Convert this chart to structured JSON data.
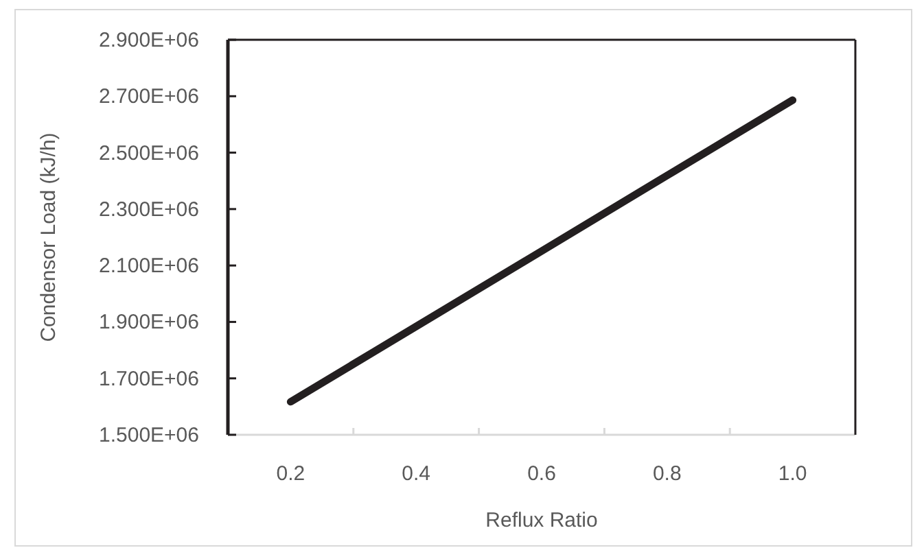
{
  "chart_data": {
    "type": "line",
    "xlabel": "Reflux Ratio",
    "ylabel": "Condensor Load (kJ/h)",
    "x": [
      0.2,
      0.4,
      0.6,
      0.8,
      1.0
    ],
    "series": [
      {
        "color": "#231f20",
        "values": [
          1617000,
          1884000,
          2151000,
          2419000,
          2686000
        ]
      }
    ],
    "xlim": [
      0.1,
      1.1
    ],
    "xticks": [
      {
        "value": 0.2,
        "label": "0.2"
      },
      {
        "value": 0.3,
        "label": null
      },
      {
        "value": 0.4,
        "label": "0.4"
      },
      {
        "value": 0.5,
        "label": null
      },
      {
        "value": 0.6,
        "label": "0.6"
      },
      {
        "value": 0.7,
        "label": null
      },
      {
        "value": 0.8,
        "label": "0.8"
      },
      {
        "value": 0.9,
        "label": null
      },
      {
        "value": 1.0,
        "label": "1.0"
      }
    ],
    "ylim": [
      1500000,
      2900000
    ],
    "yticks": [
      {
        "value": 1500000,
        "label": "1.500E+06"
      },
      {
        "value": 1700000,
        "label": "1.700E+06"
      },
      {
        "value": 1900000,
        "label": "1.900E+06"
      },
      {
        "value": 2100000,
        "label": "2.100E+06"
      },
      {
        "value": 2300000,
        "label": "2.300E+06"
      },
      {
        "value": 2500000,
        "label": "2.500E+06"
      },
      {
        "value": 2700000,
        "label": "2.700E+06"
      },
      {
        "value": 2900000,
        "label": "2.900E+06"
      }
    ],
    "grid": false,
    "marker": "none",
    "line_style": "solid"
  }
}
